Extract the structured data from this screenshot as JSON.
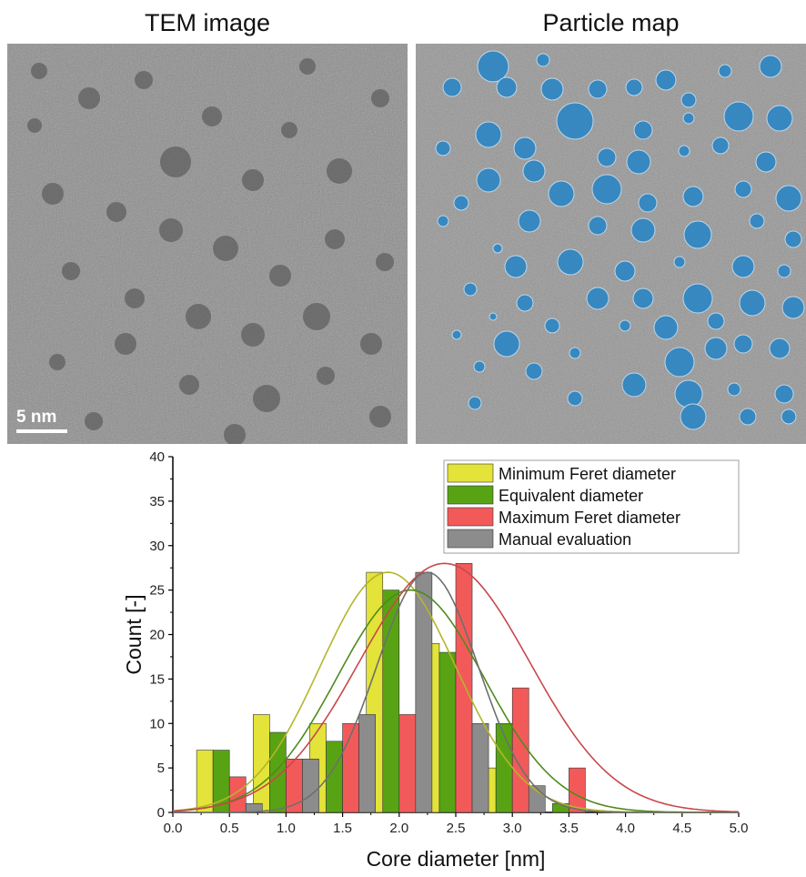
{
  "panels": {
    "left_title": "TEM image",
    "right_title": "Particle map",
    "scale_bar": "5 nm"
  },
  "colors": {
    "min_feret": "#e3e339",
    "equivalent": "#58a314",
    "max_feret": "#f25a5a",
    "manual": "#8c8c8c",
    "particle": "#2f86c3"
  },
  "chart_data": {
    "type": "bar",
    "xlabel": "Core diameter [nm]",
    "ylabel": "Count [-]",
    "xlim": [
      0.0,
      5.0
    ],
    "ylim": [
      0,
      40
    ],
    "xticks": [
      "0.0",
      "0.5",
      "1.0",
      "1.5",
      "2.0",
      "2.5",
      "3.0",
      "3.5",
      "4.0",
      "4.5",
      "5.0"
    ],
    "yticks": [
      "0",
      "5",
      "10",
      "15",
      "20",
      "25",
      "30",
      "35",
      "40"
    ],
    "legend_position": "top-right",
    "bin_width": 0.25,
    "series": [
      {
        "name": "Minimum Feret diameter",
        "x": [
          0.5,
          1.0,
          1.5,
          2.0,
          2.5,
          3.0,
          3.5
        ],
        "values": [
          7,
          11,
          10,
          27,
          19,
          5,
          0
        ],
        "fit": {
          "mean": 1.9,
          "peak": 27,
          "sd": 0.6
        },
        "color": "#e3e339",
        "line_color": "#b5b52a"
      },
      {
        "name": "Equivalent diameter",
        "x": [
          0.5,
          1.0,
          1.5,
          2.0,
          2.5,
          3.0,
          3.5
        ],
        "values": [
          7,
          9,
          8,
          25,
          18,
          10,
          1
        ],
        "fit": {
          "mean": 2.1,
          "peak": 25,
          "sd": 0.65
        },
        "color": "#58a314",
        "line_color": "#4f8a1d"
      },
      {
        "name": "Maximum Feret diameter",
        "x": [
          0.5,
          1.0,
          1.5,
          2.0,
          2.5,
          3.0,
          3.5
        ],
        "values": [
          4,
          6,
          10,
          11,
          28,
          14,
          5
        ],
        "fit": {
          "mean": 2.4,
          "peak": 28,
          "sd": 0.75
        },
        "color": "#f25a5a",
        "line_color": "#c8484a"
      },
      {
        "name": "Manual evaluation",
        "x": [
          0.5,
          1.0,
          1.5,
          2.0,
          2.5,
          3.0,
          3.5
        ],
        "values": [
          1,
          6,
          11,
          27,
          10,
          3,
          0
        ],
        "fit": {
          "mean": 2.25,
          "peak": 27,
          "sd": 0.45
        },
        "color": "#8c8c8c",
        "line_color": "#6f6f6f"
      }
    ]
  }
}
